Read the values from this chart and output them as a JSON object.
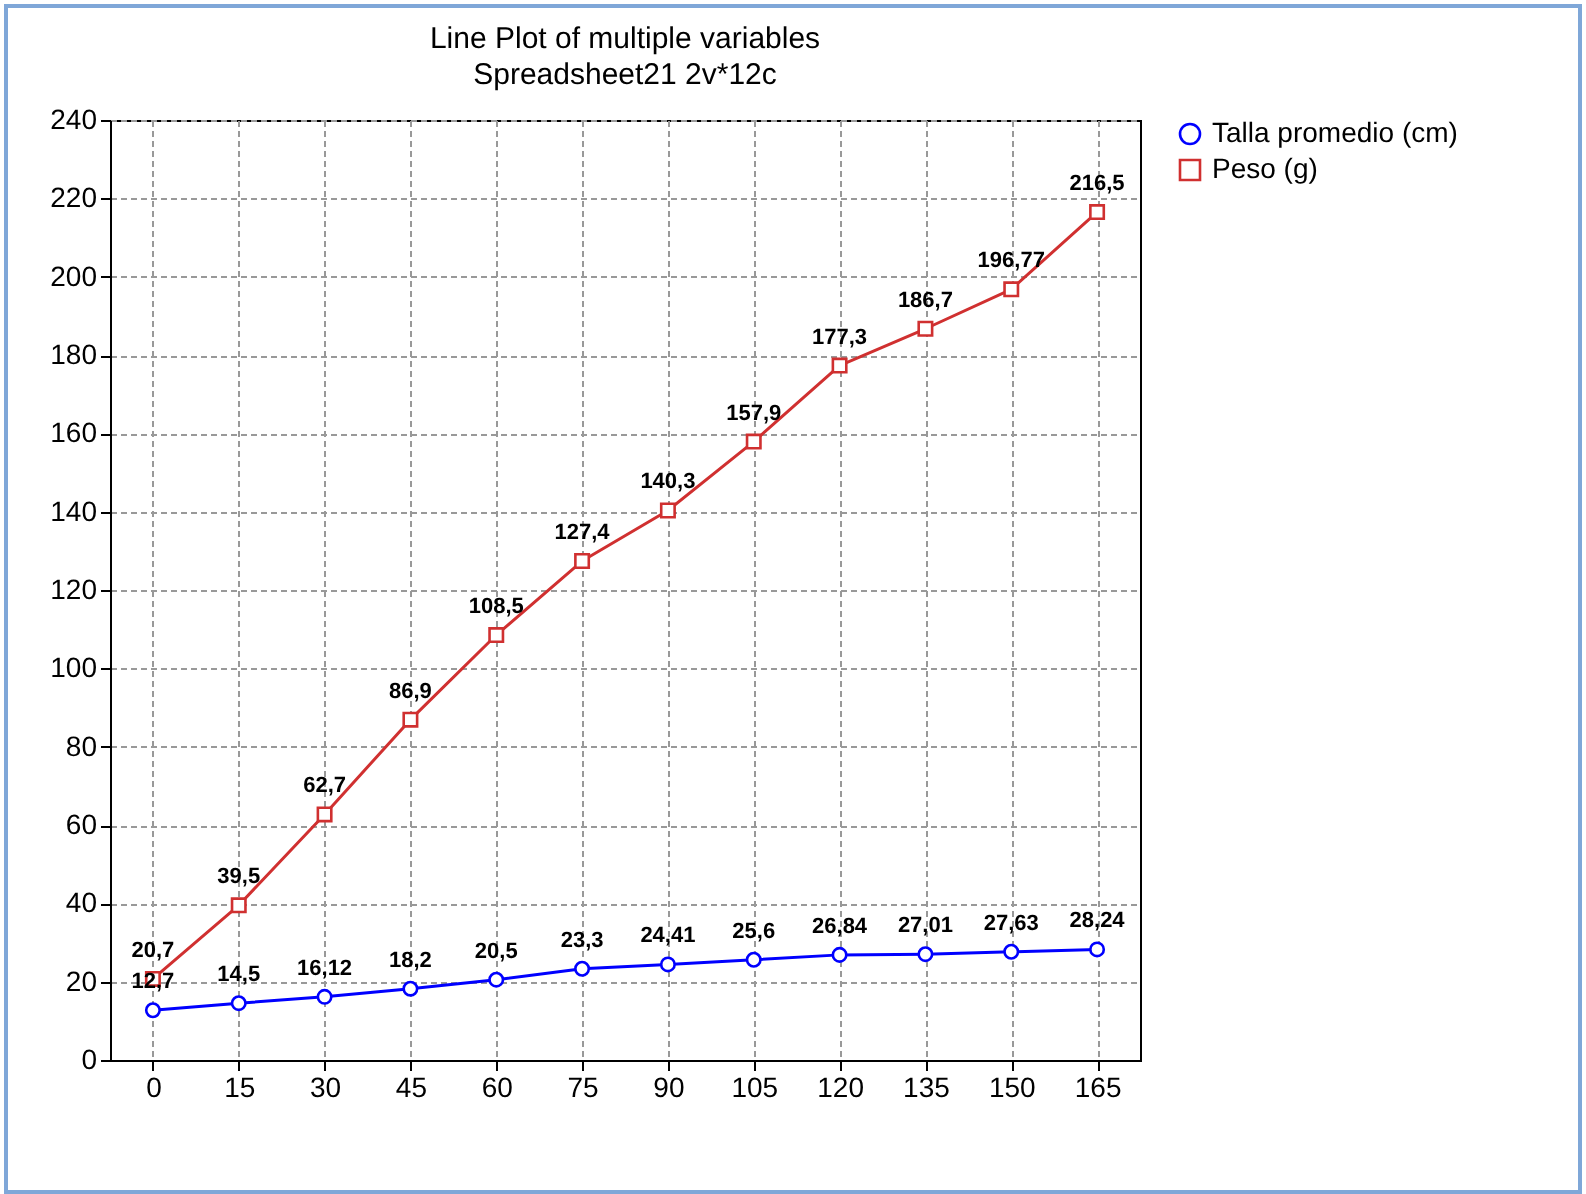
{
  "chart_data": {
    "type": "line",
    "title": "Line Plot of multiple variables",
    "subtitle": "Spreadsheet21 2v*12c",
    "categories": [
      "0",
      "15",
      "30",
      "45",
      "60",
      "75",
      "90",
      "105",
      "120",
      "135",
      "150",
      "165"
    ],
    "series": [
      {
        "name": "Talla promedio (cm)",
        "color": "#0000ff",
        "marker": "circle",
        "values": [
          12.7,
          14.5,
          16.12,
          18.2,
          20.5,
          23.3,
          24.41,
          25.6,
          26.84,
          27.01,
          27.63,
          28.24
        ],
        "value_labels": [
          "12,7",
          "14,5",
          "16,12",
          "18,2",
          "20,5",
          "23,3",
          "24,41",
          "25,6",
          "26,84",
          "27,01",
          "27,63",
          "28,24"
        ]
      },
      {
        "name": "Peso (g)",
        "color": "#d03030",
        "marker": "square",
        "values": [
          20.7,
          39.5,
          62.7,
          86.9,
          108.5,
          127.4,
          140.3,
          157.9,
          177.3,
          186.7,
          196.77,
          216.5
        ],
        "value_labels": [
          "20,7",
          "39,5",
          "62,7",
          "86,9",
          "108,5",
          "127,4",
          "140,3",
          "157,9",
          "177,3",
          "186,7",
          "196,77",
          "216,5"
        ]
      }
    ],
    "ylim": [
      0,
      240
    ],
    "yticks": [
      0,
      20,
      40,
      60,
      80,
      100,
      120,
      140,
      160,
      180,
      200,
      220,
      240
    ],
    "grid": true,
    "legend": "right",
    "line_style": "solid"
  }
}
